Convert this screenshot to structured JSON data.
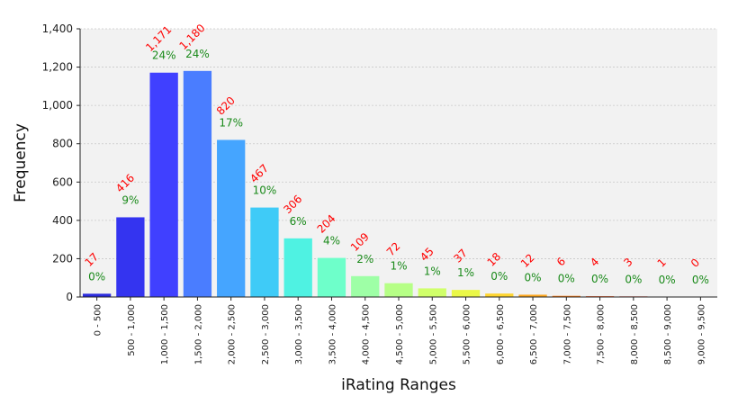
{
  "chart_data": {
    "type": "bar",
    "xlabel": "iRating Ranges",
    "ylabel": "Frequency",
    "ylim": [
      0,
      1400
    ],
    "yticks": [
      0,
      200,
      400,
      600,
      800,
      1000,
      1200,
      1400
    ],
    "ytick_labels": [
      "0",
      "200",
      "400",
      "600",
      "800",
      "1,000",
      "1,200",
      "1,400"
    ],
    "grid": true,
    "categories": [
      "0 - 500",
      "500 - 1,000",
      "1,000 - 1,500",
      "1,500 - 2,000",
      "2,000 - 2,500",
      "2,500 - 3,000",
      "3,000 - 3,500",
      "3,500 - 4,000",
      "4,000 - 4,500",
      "4,500 - 5,000",
      "5,000 - 5,500",
      "5,500 - 6,000",
      "6,000 - 6,500",
      "6,500 - 7,000",
      "7,000 - 7,500",
      "7,500 - 8,000",
      "8,000 - 8,500",
      "8,500 - 9,000",
      "9,000 - 9,500"
    ],
    "values": [
      17,
      416,
      1171,
      1180,
      820,
      467,
      306,
      204,
      109,
      72,
      45,
      37,
      18,
      12,
      6,
      4,
      3,
      1,
      0
    ],
    "value_labels": [
      "17",
      "416",
      "1,171",
      "1,180",
      "820",
      "467",
      "306",
      "204",
      "109",
      "72",
      "45",
      "37",
      "18",
      "12",
      "6",
      "4",
      "3",
      "1",
      "0"
    ],
    "percent_labels": [
      "0%",
      "9%",
      "24%",
      "24%",
      "17%",
      "10%",
      "6%",
      "4%",
      "2%",
      "1%",
      "1%",
      "1%",
      "0%",
      "0%",
      "0%",
      "0%",
      "0%",
      "0%",
      "0%"
    ],
    "colors": [
      "#2b2bdd",
      "#3434f0",
      "#4040ff",
      "#4a7dff",
      "#45a5ff",
      "#3fcbf7",
      "#4ff2e2",
      "#6effca",
      "#9effa6",
      "#b6ff86",
      "#d0ff6a",
      "#eaf848",
      "#ffd530",
      "#ffa81e",
      "#ff7a10",
      "#ff4a08",
      "#f01e02",
      "#c00000",
      "#8b0000"
    ],
    "colors_note_ok": "",
    "label_colors": {
      "count": "#ff0000",
      "percent": "#1a8a1a"
    },
    "background": "#f2f2f2"
  }
}
